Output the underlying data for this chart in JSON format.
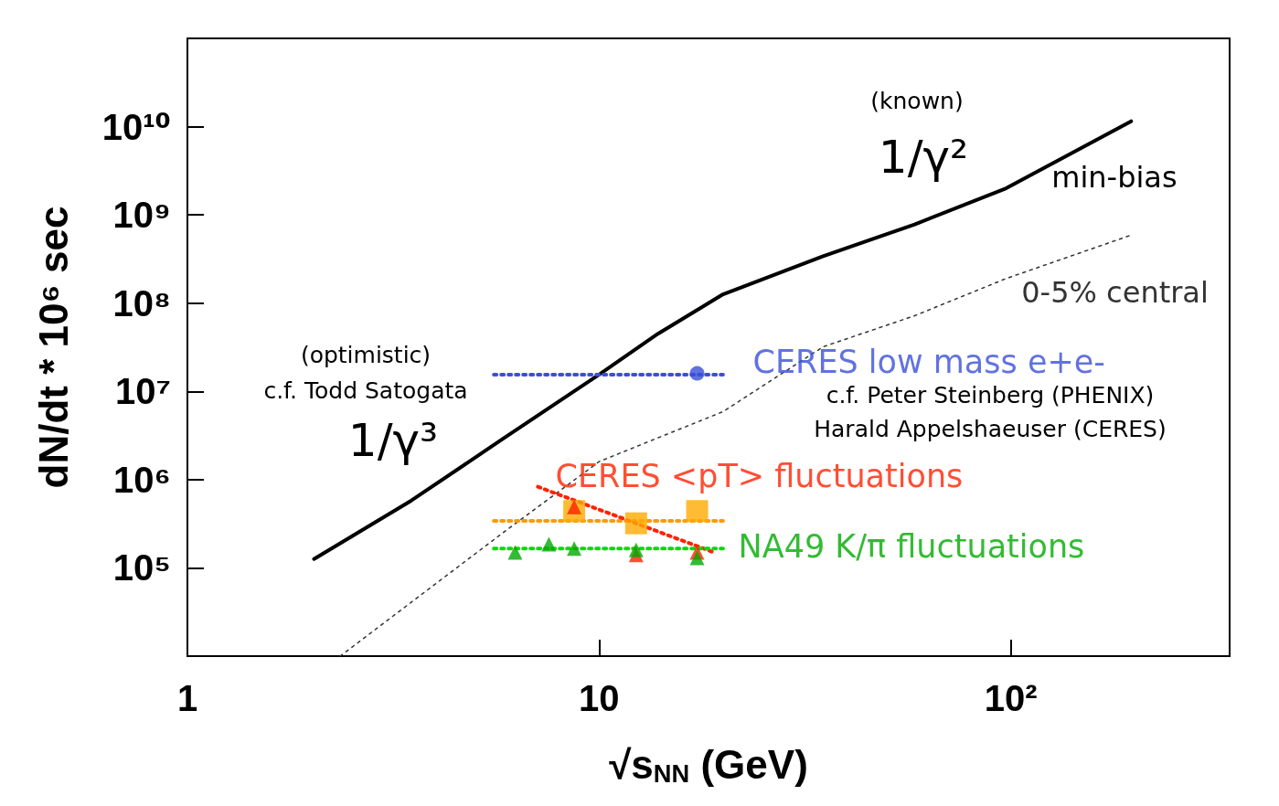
{
  "chart_data": {
    "type": "line",
    "xlabel": "√s$_{NN}$ (GeV)",
    "ylabel": "dN/dt * 10⁶ sec",
    "log": "xy",
    "xlim": [
      1,
      340
    ],
    "ylim": [
      10000,
      100000000000
    ],
    "xticks": [
      1,
      10,
      {
        "value": 100,
        "label": "10²"
      }
    ],
    "yticks": [
      {
        "value": 100000,
        "label": "10⁵"
      },
      {
        "value": 1000000,
        "label": "10⁶"
      },
      {
        "value": 10000000,
        "label": "10⁷"
      },
      {
        "value": 100000000,
        "label": "10⁸"
      },
      {
        "value": 1000000000,
        "label": "10⁹"
      },
      {
        "value": 10000000000,
        "label": "10¹⁰"
      }
    ],
    "series": [
      {
        "name": "min-bias",
        "color": "#000000",
        "marker": "none",
        "line_style": "solid",
        "x": [
          2.03,
          3.5,
          5.84,
          10,
          13.9,
          20,
          35,
          58.4,
          97.4,
          196
        ],
        "values": [
          126000,
          580000,
          2900000,
          15500000,
          45000000,
          126000000,
          340000000,
          780000000,
          2000000000,
          11500000000
        ]
      },
      {
        "name": "0-5% central",
        "color": "#333333",
        "marker": "none",
        "line_style": "dotted",
        "x": [
          2.35,
          5.84,
          10,
          20,
          35,
          58.4,
          97.4,
          194
        ],
        "values": [
          10000,
          250000,
          1600000,
          5900000,
          32000000,
          72000000,
          190000000,
          580000000
        ]
      },
      {
        "color": "#3a4fd8",
        "marker": "none",
        "line_style": "dotted",
        "x": [
          5.55,
          20
        ],
        "values": [
          15500000,
          15500000
        ]
      },
      {
        "name": "CERES low mass e+e-",
        "type": "scatter",
        "color": "#3a4fd8",
        "marker": "circle",
        "x": [
          17.3
        ],
        "values": [
          16000000
        ]
      },
      {
        "color": "#ff9900",
        "marker": "none",
        "line_style": "dotted",
        "x": [
          5.55,
          20
        ],
        "values": [
          340000,
          340000
        ]
      },
      {
        "type": "scatter",
        "color": "#ffaa00",
        "marker": "square",
        "x": [
          8.7,
          12.3,
          17.3
        ],
        "values": [
          440000,
          320000,
          440000
        ]
      },
      {
        "color": "#ff2200",
        "marker": "none",
        "line_style": "dotted",
        "x": [
          7.1,
          19
        ],
        "values": [
          830000,
          150000
        ]
      },
      {
        "name": "CERES <pT> fluctuations",
        "type": "scatter",
        "color": "#ff2200",
        "marker": "triangle",
        "x": [
          8.7,
          12.3,
          17.3
        ],
        "values": [
          490000,
          140000,
          150000
        ]
      },
      {
        "color": "#00dd00",
        "marker": "none",
        "line_style": "dotted",
        "x": [
          5.55,
          20
        ],
        "values": [
          166000,
          166000
        ]
      },
      {
        "name": "NA49 K/π fluctuations",
        "type": "scatter",
        "color": "#00aa00",
        "marker": "triangle",
        "x": [
          6.25,
          7.55,
          8.7,
          12.3,
          17.3
        ],
        "values": [
          150000,
          186000,
          166000,
          160000,
          130000
        ]
      }
    ],
    "annotations": [
      "(known)",
      "1/γ²",
      "(optimistic)",
      "c.f. Todd Satogata",
      "1/γ³",
      "c.f. Peter Steinberg (PHENIX)",
      "Harald Appelshaeuser (CERES)"
    ]
  }
}
